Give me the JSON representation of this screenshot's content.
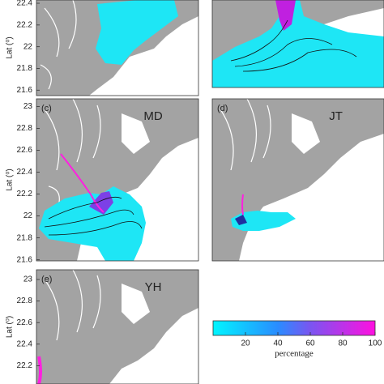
{
  "panels": [
    {
      "label": null,
      "name": null,
      "ylim": [
        21.55,
        22.43
      ],
      "yticks": [
        22.4,
        22.2,
        22,
        21.8,
        21.6
      ],
      "axis_title": "Lat (⁰)"
    },
    {
      "label": null,
      "name": null
    },
    {
      "label": "(c)",
      "name": "MD",
      "ylim": [
        21.59,
        23.07
      ],
      "yticks": [
        23,
        22.8,
        22.6,
        22.4,
        22.2,
        22,
        21.8,
        21.6
      ],
      "axis_title": "Lat (⁰)"
    },
    {
      "label": "(d)",
      "name": "JT"
    },
    {
      "label": "(e)",
      "name": "YH",
      "ylim": [
        22.03,
        23.09
      ],
      "yticks": [
        23,
        22.8,
        22.6,
        22.4,
        22.2
      ],
      "axis_title": "Lat (⁰)"
    }
  ],
  "colorbar": {
    "clim": [
      0,
      100
    ],
    "ticks": [
      20,
      40,
      60,
      80,
      100
    ],
    "label": "percentage"
  }
}
